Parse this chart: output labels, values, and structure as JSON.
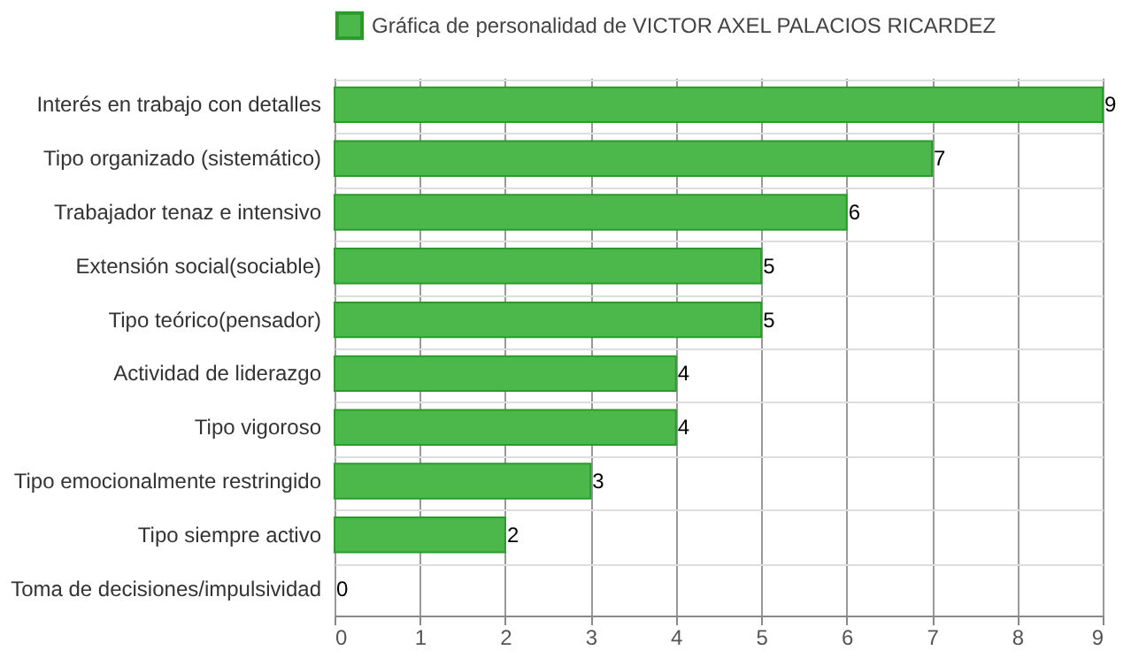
{
  "chart_data": {
    "type": "bar",
    "orientation": "horizontal",
    "categories": [
      "Interés en trabajo con detalles",
      "Tipo organizado (sistemático)",
      "Trabajador tenaz e intensivo",
      "Extensión social(sociable)",
      "Tipo teórico(pensador)",
      "Actividad de liderazgo",
      "Tipo vigoroso",
      "Tipo emocionalmente restringido",
      "Tipo siempre activo",
      "Toma de decisiones/impulsividad"
    ],
    "series": [
      {
        "name": "Gráfica de personalidad de VICTOR AXEL PALACIOS RICARDEZ",
        "color": "#4cb84c",
        "values": [
          9,
          7,
          6,
          5,
          5,
          4,
          4,
          3,
          2,
          0
        ]
      }
    ],
    "xlim": [
      0,
      9
    ],
    "xticks": [
      0,
      1,
      2,
      3,
      4,
      5,
      6,
      7,
      8,
      9
    ],
    "grid": true,
    "legend": "top",
    "data_labels": true
  }
}
